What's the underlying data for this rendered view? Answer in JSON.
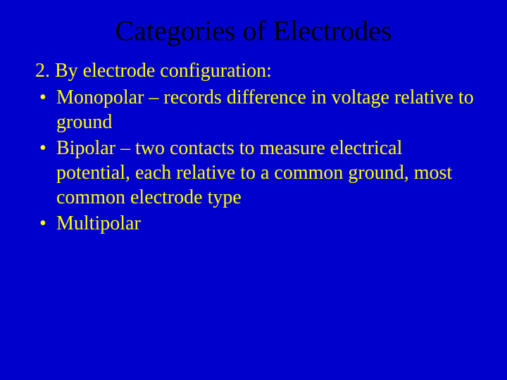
{
  "slide": {
    "title": "Categories of Electrodes",
    "subtitle": "2. By electrode configuration:",
    "bullets": [
      "Monopolar – records difference in voltage relative to ground",
      "Bipolar – two contacts to measure electrical potential, each relative to a common ground, most common electrode type",
      "Multipolar"
    ],
    "colors": {
      "background": "#0000cc",
      "title_color": "#000000",
      "text_color": "#ffff00"
    },
    "typography": {
      "font_family": "Times New Roman",
      "title_fontsize": 40,
      "body_fontsize": 28
    }
  }
}
